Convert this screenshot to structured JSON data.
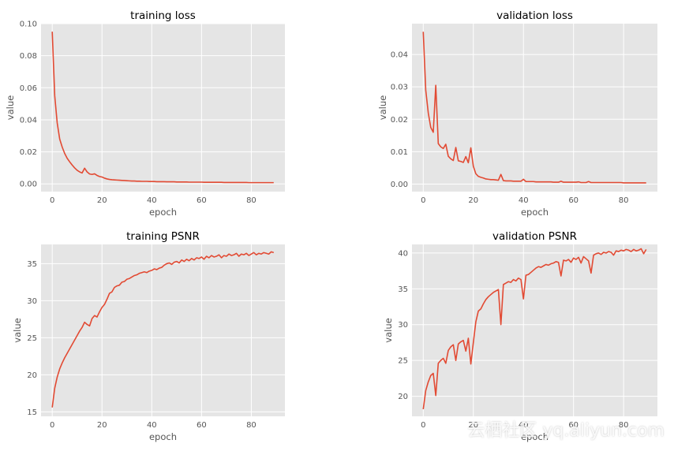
{
  "watermark": "云栖社区 yq.aliyun.com",
  "colors": {
    "panel_bg": "#E5E5E5",
    "grid": "#FFFFFF",
    "line": "#E24A33",
    "tick_text": "#555555",
    "title_text": "#000000"
  },
  "chart_data": [
    {
      "type": "line",
      "title": "training loss",
      "xlabel": "epoch",
      "ylabel": "value",
      "xlim": [
        -4.5,
        93.5
      ],
      "ylim": [
        -0.0048,
        0.1
      ],
      "xticks": [
        0,
        20,
        40,
        60,
        80
      ],
      "yticks": [
        0.0,
        0.02,
        0.04,
        0.06,
        0.08,
        0.1
      ],
      "ytick_labels": [
        "0.00",
        "0.02",
        "0.04",
        "0.06",
        "0.08",
        "0.10"
      ],
      "grid": true,
      "series": [
        {
          "values": [
            0.095,
            0.055,
            0.038,
            0.028,
            0.023,
            0.019,
            0.016,
            0.0138,
            0.0118,
            0.01,
            0.0085,
            0.0075,
            0.0068,
            0.0098,
            0.0075,
            0.0062,
            0.0059,
            0.0063,
            0.0053,
            0.0046,
            0.0043,
            0.0036,
            0.0031,
            0.0028,
            0.0026,
            0.0025,
            0.0024,
            0.0023,
            0.0022,
            0.0021,
            0.002,
            0.0019,
            0.0018,
            0.0018,
            0.0017,
            0.0017,
            0.0016,
            0.0016,
            0.0016,
            0.0015,
            0.0015,
            0.0015,
            0.0014,
            0.0014,
            0.0014,
            0.0014,
            0.0013,
            0.0013,
            0.0013,
            0.0013,
            0.0012,
            0.0012,
            0.0012,
            0.0012,
            0.0012,
            0.0011,
            0.0011,
            0.0011,
            0.0011,
            0.0011,
            0.0011,
            0.001,
            0.001,
            0.001,
            0.001,
            0.001,
            0.001,
            0.001,
            0.001,
            0.0009,
            0.0009,
            0.0009,
            0.0009,
            0.0009,
            0.0009,
            0.0009,
            0.0009,
            0.0009,
            0.0009,
            0.0008,
            0.0008,
            0.0008,
            0.0008,
            0.0008,
            0.0008,
            0.0008,
            0.0008,
            0.0008,
            0.0008,
            0.0008
          ]
        }
      ]
    },
    {
      "type": "line",
      "title": "validation loss",
      "xlabel": "epoch",
      "ylabel": "value",
      "xlim": [
        -4.5,
        93.5
      ],
      "ylim": [
        -0.0023,
        0.0495
      ],
      "xticks": [
        0,
        20,
        40,
        60,
        80
      ],
      "yticks": [
        0.0,
        0.01,
        0.02,
        0.03,
        0.04
      ],
      "ytick_labels": [
        "0.00",
        "0.01",
        "0.02",
        "0.03",
        "0.04"
      ],
      "grid": true,
      "series": [
        {
          "values": [
            0.047,
            0.029,
            0.022,
            0.0175,
            0.016,
            0.0305,
            0.0125,
            0.0115,
            0.011,
            0.0123,
            0.0086,
            0.0078,
            0.0073,
            0.0113,
            0.0072,
            0.007,
            0.0067,
            0.0085,
            0.0066,
            0.0112,
            0.0055,
            0.0032,
            0.0024,
            0.0021,
            0.0019,
            0.0016,
            0.0015,
            0.0014,
            0.0014,
            0.0013,
            0.0012,
            0.003,
            0.0011,
            0.001,
            0.001,
            0.001,
            0.0009,
            0.0009,
            0.0009,
            0.0009,
            0.0015,
            0.0008,
            0.0008,
            0.0008,
            0.0008,
            0.0007,
            0.0007,
            0.0007,
            0.0007,
            0.0007,
            0.0007,
            0.0007,
            0.0006,
            0.0006,
            0.0006,
            0.0009,
            0.0006,
            0.0006,
            0.0006,
            0.0006,
            0.0006,
            0.0006,
            0.0007,
            0.0005,
            0.0005,
            0.0005,
            0.0008,
            0.0005,
            0.0005,
            0.0005,
            0.0005,
            0.0005,
            0.0005,
            0.0005,
            0.0005,
            0.0005,
            0.0005,
            0.0005,
            0.0005,
            0.0005,
            0.0004,
            0.0004,
            0.0004,
            0.0004,
            0.0004,
            0.0004,
            0.0004,
            0.0004,
            0.0004,
            0.0004
          ]
        }
      ]
    },
    {
      "type": "line",
      "title": "training PSNR",
      "xlabel": "epoch",
      "ylabel": "value",
      "xlim": [
        -4.5,
        93.5
      ],
      "ylim": [
        14.4,
        37.6
      ],
      "xticks": [
        0,
        20,
        40,
        60,
        80
      ],
      "yticks": [
        15,
        20,
        25,
        30,
        35
      ],
      "ytick_labels": [
        "15",
        "20",
        "25",
        "30",
        "35"
      ],
      "grid": true,
      "series": [
        {
          "values": [
            15.6,
            18.2,
            19.7,
            20.8,
            21.6,
            22.3,
            22.9,
            23.5,
            24.1,
            24.7,
            25.3,
            25.9,
            26.4,
            27.1,
            26.8,
            26.6,
            27.6,
            28.0,
            27.8,
            28.5,
            29.1,
            29.5,
            30.2,
            31.0,
            31.2,
            31.8,
            32.0,
            32.1,
            32.5,
            32.6,
            32.9,
            33.0,
            33.2,
            33.4,
            33.5,
            33.7,
            33.8,
            33.9,
            33.8,
            34.0,
            34.1,
            34.3,
            34.2,
            34.4,
            34.5,
            34.8,
            35.0,
            35.1,
            34.9,
            35.2,
            35.3,
            35.1,
            35.5,
            35.3,
            35.6,
            35.4,
            35.7,
            35.5,
            35.8,
            35.7,
            35.9,
            35.6,
            36.0,
            35.8,
            36.1,
            35.9,
            36.0,
            36.2,
            35.8,
            36.1,
            36.0,
            36.3,
            36.1,
            36.2,
            36.4,
            36.0,
            36.3,
            36.2,
            36.4,
            36.1,
            36.3,
            36.5,
            36.2,
            36.4,
            36.3,
            36.5,
            36.4,
            36.3,
            36.6,
            36.5
          ]
        }
      ]
    },
    {
      "type": "line",
      "title": "validation PSNR",
      "xlabel": "epoch",
      "ylabel": "value",
      "xlim": [
        -4.5,
        93.5
      ],
      "ylim": [
        17.2,
        41.2
      ],
      "xticks": [
        0,
        20,
        40,
        60,
        80
      ],
      "yticks": [
        20,
        25,
        30,
        35,
        40
      ],
      "ytick_labels": [
        "20",
        "25",
        "30",
        "35",
        "40"
      ],
      "grid": true,
      "series": [
        {
          "values": [
            18.2,
            20.8,
            22.0,
            22.9,
            23.2,
            20.1,
            24.6,
            25.0,
            25.3,
            24.6,
            26.4,
            26.9,
            27.2,
            25.0,
            27.3,
            27.6,
            27.8,
            26.3,
            28.1,
            24.5,
            27.5,
            30.4,
            31.9,
            32.2,
            32.9,
            33.5,
            33.9,
            34.2,
            34.5,
            34.7,
            34.9,
            30.0,
            35.6,
            35.8,
            36.0,
            35.9,
            36.3,
            36.1,
            36.5,
            36.3,
            33.6,
            36.9,
            37.0,
            37.3,
            37.6,
            37.9,
            38.1,
            38.0,
            38.2,
            38.4,
            38.3,
            38.5,
            38.6,
            38.8,
            38.7,
            36.8,
            39.0,
            38.9,
            39.1,
            38.7,
            39.3,
            39.1,
            39.4,
            38.6,
            39.5,
            39.2,
            38.9,
            37.2,
            39.7,
            39.9,
            40.0,
            39.8,
            40.1,
            40.0,
            40.2,
            40.1,
            39.7,
            40.3,
            40.2,
            40.4,
            40.3,
            40.5,
            40.4,
            40.2,
            40.5,
            40.3,
            40.4,
            40.6,
            39.9,
            40.5
          ]
        }
      ]
    }
  ]
}
